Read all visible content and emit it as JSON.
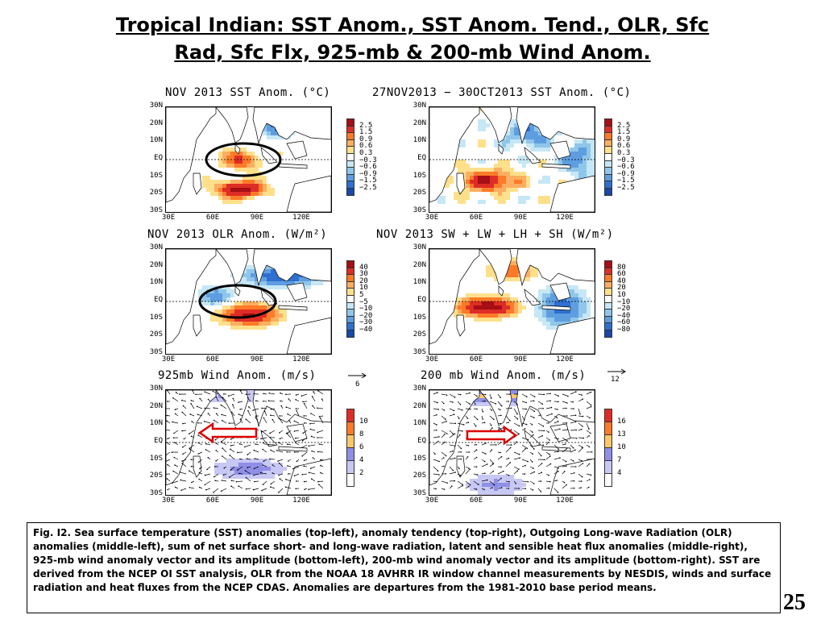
{
  "slide": {
    "title_line1": "Tropical Indian: SST Anom., SST Anom. Tend., OLR, Sfc",
    "title_line2": "Rad, Sfc Flx, 925-mb & 200-mb Wind Anom.",
    "page_number": "25",
    "caption": "Fig. I2. Sea surface temperature (SST) anomalies (top-left), anomaly tendency (top-right), Outgoing Long-wave Radiation (OLR) anomalies (middle-left), sum of net surface short- and long-wave radiation, latent and sensible heat flux anomalies (middle-right), 925-mb wind anomaly vector and its amplitude (bottom-left), 200-mb wind anomaly vector and its amplitude  (bottom-right). SST are derived from the NCEP OI SST analysis, OLR from the NOAA 18 AVHRR IR window channel measurements by NESDIS, winds and surface radiation and heat fluxes from the NCEP CDAS. Anomalies are  departures from the 1981-2010 base period means."
  },
  "axes": {
    "lat_labels": [
      "30N",
      "20N",
      "10N",
      "EQ",
      "10S",
      "20S",
      "30S"
    ],
    "lon_labels": [
      "30E",
      "60E",
      "90E",
      "120E"
    ]
  },
  "panels": {
    "sst": {
      "title": "NOV 2013 SST Anom. (°C)",
      "colorbar": [
        "2.5",
        "1.5",
        "0.9",
        "0.6",
        "0.3",
        "−0.3",
        "−0.6",
        "−0.9",
        "−1.5",
        "−2.5"
      ],
      "colors": [
        "#a50f15",
        "#de2d26",
        "#fc7a28",
        "#fdae61",
        "#fee08b",
        "#ffffff",
        "#c6e7f5",
        "#8fc6ea",
        "#5e9ee0",
        "#2f6fd0",
        "#1948a8"
      ]
    },
    "sst_tend": {
      "title": "27NOV2013 − 30OCT2013 SST Anom. (°C)",
      "colorbar": [
        "2.5",
        "1.5",
        "0.9",
        "0.6",
        "0.3",
        "−0.3",
        "−0.6",
        "−0.9",
        "−1.5",
        "−2.5"
      ],
      "colors": [
        "#a50f15",
        "#de2d26",
        "#fc7a28",
        "#fdae61",
        "#fee08b",
        "#ffffff",
        "#c6e7f5",
        "#8fc6ea",
        "#5e9ee0",
        "#2f6fd0",
        "#1948a8"
      ]
    },
    "olr": {
      "title": "NOV 2013 OLR Anom. (W/m²)",
      "colorbar": [
        "40",
        "30",
        "20",
        "10",
        "5",
        "−5",
        "−10",
        "−20",
        "−30",
        "−40"
      ],
      "colors": [
        "#a50f15",
        "#de2d26",
        "#fc7a28",
        "#fdae61",
        "#fee08b",
        "#ffffff",
        "#c6e7f5",
        "#8fc6ea",
        "#5e9ee0",
        "#2f6fd0",
        "#1948a8"
      ]
    },
    "flux": {
      "title": "NOV 2013 SW + LW + LH + SH (W/m²)",
      "colorbar": [
        "80",
        "60",
        "40",
        "20",
        "10",
        "−10",
        "−20",
        "−40",
        "−60",
        "−80"
      ],
      "colors": [
        "#a50f15",
        "#de2d26",
        "#fc7a28",
        "#fdae61",
        "#fee08b",
        "#ffffff",
        "#c6e7f5",
        "#8fc6ea",
        "#5e9ee0",
        "#2f6fd0",
        "#1948a8"
      ]
    },
    "wind925": {
      "title": "925mb Wind Anom. (m/s)",
      "reference_vector": "6",
      "colorbar": [
        "10",
        "8",
        "6",
        "4",
        "2"
      ],
      "colors": [
        "#de2d26",
        "#fc7a28",
        "#fdc86a",
        "#8f8fe8",
        "#c8c8f5",
        "#ffffff"
      ]
    },
    "wind200": {
      "title": "200 mb Wind Anom. (m/s)",
      "reference_vector": "12",
      "colorbar": [
        "16",
        "13",
        "10",
        "7",
        "4"
      ],
      "colors": [
        "#de2d26",
        "#fc7a28",
        "#fdc86a",
        "#8f8fe8",
        "#c8c8f5",
        "#ffffff"
      ]
    }
  }
}
